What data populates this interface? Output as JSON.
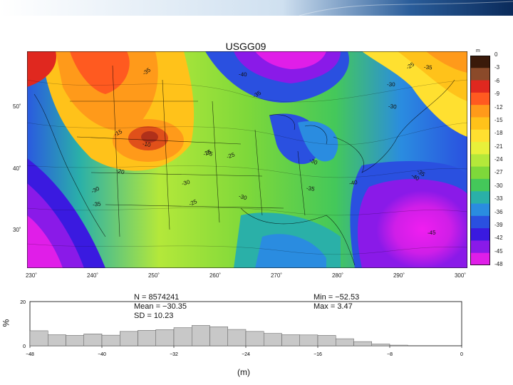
{
  "map": {
    "title": "USGG09",
    "lon_labels": [
      "230˚",
      "240˚",
      "250˚",
      "260˚",
      "270˚",
      "280˚",
      "290˚",
      "300˚"
    ],
    "lat_labels": [
      "50˚",
      "40˚",
      "30˚"
    ],
    "contour_labels": [
      {
        "text": "-35"
      },
      {
        "text": "-40"
      },
      {
        "text": "-35"
      },
      {
        "text": "-30"
      },
      {
        "text": "-15"
      },
      {
        "text": "-10"
      },
      {
        "text": "-25"
      },
      {
        "text": "-20"
      },
      {
        "text": "-25"
      },
      {
        "text": "-30"
      },
      {
        "text": "-30"
      },
      {
        "text": "-35"
      },
      {
        "text": "-40"
      },
      {
        "text": "-30"
      },
      {
        "text": "-35"
      },
      {
        "text": "-40"
      },
      {
        "text": "-45"
      },
      {
        "text": "-35"
      },
      {
        "text": "-30"
      },
      {
        "text": "-25"
      },
      {
        "text": "-35"
      },
      {
        "text": "-30"
      },
      {
        "text": "-35"
      },
      {
        "text": "-25"
      }
    ]
  },
  "colorbar": {
    "unit": "m",
    "ticks": [
      "0",
      "-3",
      "-6",
      "-9",
      "-12",
      "-15",
      "-18",
      "-21",
      "-24",
      "-27",
      "-30",
      "-33",
      "-36",
      "-39",
      "-42",
      "-45",
      "-48"
    ],
    "colors": [
      "#3a1a0a",
      "#8b4a2a",
      "#e0281f",
      "#ff5a20",
      "#ff9a1a",
      "#ffc21a",
      "#ffe030",
      "#e8f03a",
      "#b4e83a",
      "#7ed83a",
      "#44c85a",
      "#2ab0a8",
      "#2a8ce0",
      "#2a50e0",
      "#3a1ae0",
      "#8a1ae8",
      "#e01ee8"
    ]
  },
  "stats": {
    "n": "N =  8574241",
    "mean": "Mean = −30.35",
    "sd": "SD = 10.23",
    "min": "Min = −52.53",
    "max": "Max = 3.47"
  },
  "chart_data": {
    "type": "bar",
    "title": "",
    "xlabel": "(m)",
    "ylabel": "%",
    "xlim": [
      -48,
      0
    ],
    "ylim": [
      0,
      20
    ],
    "x_ticks": [
      "−48",
      "−40",
      "−32",
      "−24",
      "−16",
      "−8",
      "0"
    ],
    "y_ticks": [
      "0",
      "20"
    ],
    "bin_width": 2,
    "bin_starts": [
      -48,
      -46,
      -44,
      -42,
      -40,
      -38,
      -36,
      -34,
      -32,
      -30,
      -28,
      -26,
      -24,
      -22,
      -20,
      -18,
      -16,
      -14,
      -12,
      -10,
      -8
    ],
    "values": [
      6.8,
      5.0,
      4.7,
      5.4,
      4.8,
      6.5,
      7.0,
      7.3,
      8.2,
      9.2,
      8.6,
      7.4,
      6.5,
      5.6,
      5.0,
      4.9,
      4.7,
      3.2,
      1.9,
      0.8,
      0.3
    ]
  }
}
